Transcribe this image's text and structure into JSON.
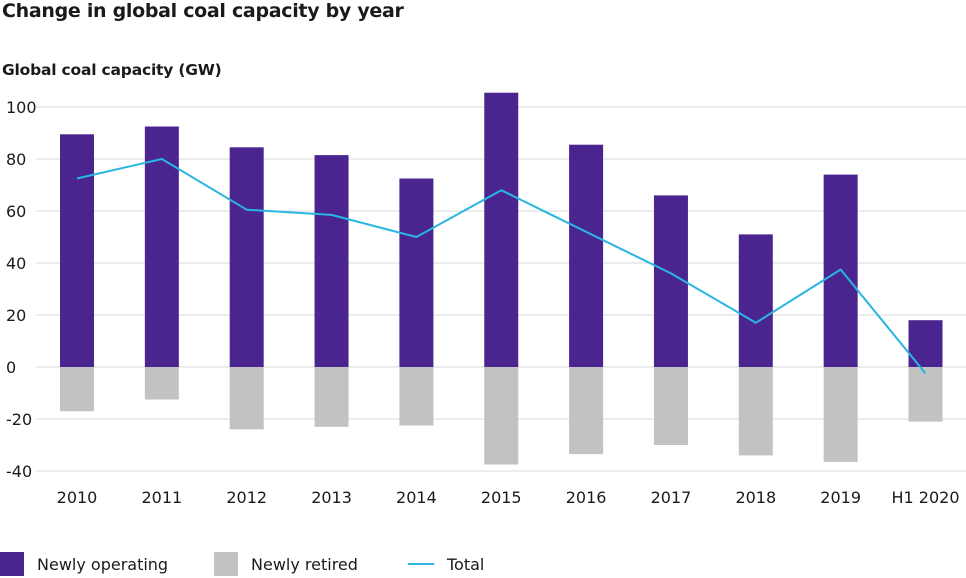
{
  "title": "Change in global coal capacity by year",
  "chart_data": {
    "type": "bar",
    "title": "Change in global coal capacity by year",
    "ylabel": "Global coal capacity (GW)",
    "xlabel": "",
    "ylim": [
      -40,
      110
    ],
    "yticks": [
      100,
      80,
      60,
      40,
      20,
      0,
      -20,
      -40
    ],
    "ytick_labels": [
      "100",
      "80",
      "60",
      "40",
      "20",
      "0",
      "-20",
      "-40"
    ],
    "categories": [
      "2010",
      "2011",
      "2012",
      "2013",
      "2014",
      "2015",
      "2016",
      "2017",
      "2018",
      "2019",
      "H1 2020"
    ],
    "series": [
      {
        "name": "Newly operating",
        "type": "bar",
        "color": "#4a2590",
        "values": [
          89.5,
          92.5,
          84.5,
          81.5,
          72.5,
          105.5,
          85.5,
          66,
          51,
          74,
          18
        ]
      },
      {
        "name": "Newly retired",
        "type": "bar",
        "color": "#c2c2c2",
        "values": [
          -17,
          -12.5,
          -24,
          -23,
          -22.5,
          -37.5,
          -33.5,
          -30,
          -34,
          -36.5,
          -21
        ]
      },
      {
        "name": "Total",
        "type": "line",
        "color": "#29b6e0",
        "values": [
          72.5,
          80,
          60.5,
          58.5,
          50,
          68,
          52,
          36,
          17,
          37.5,
          -2.5
        ]
      }
    ],
    "grid": true,
    "legend": "bottom"
  },
  "legend": {
    "newly_operating": "Newly operating",
    "newly_retired": "Newly retired",
    "total": "Total"
  }
}
